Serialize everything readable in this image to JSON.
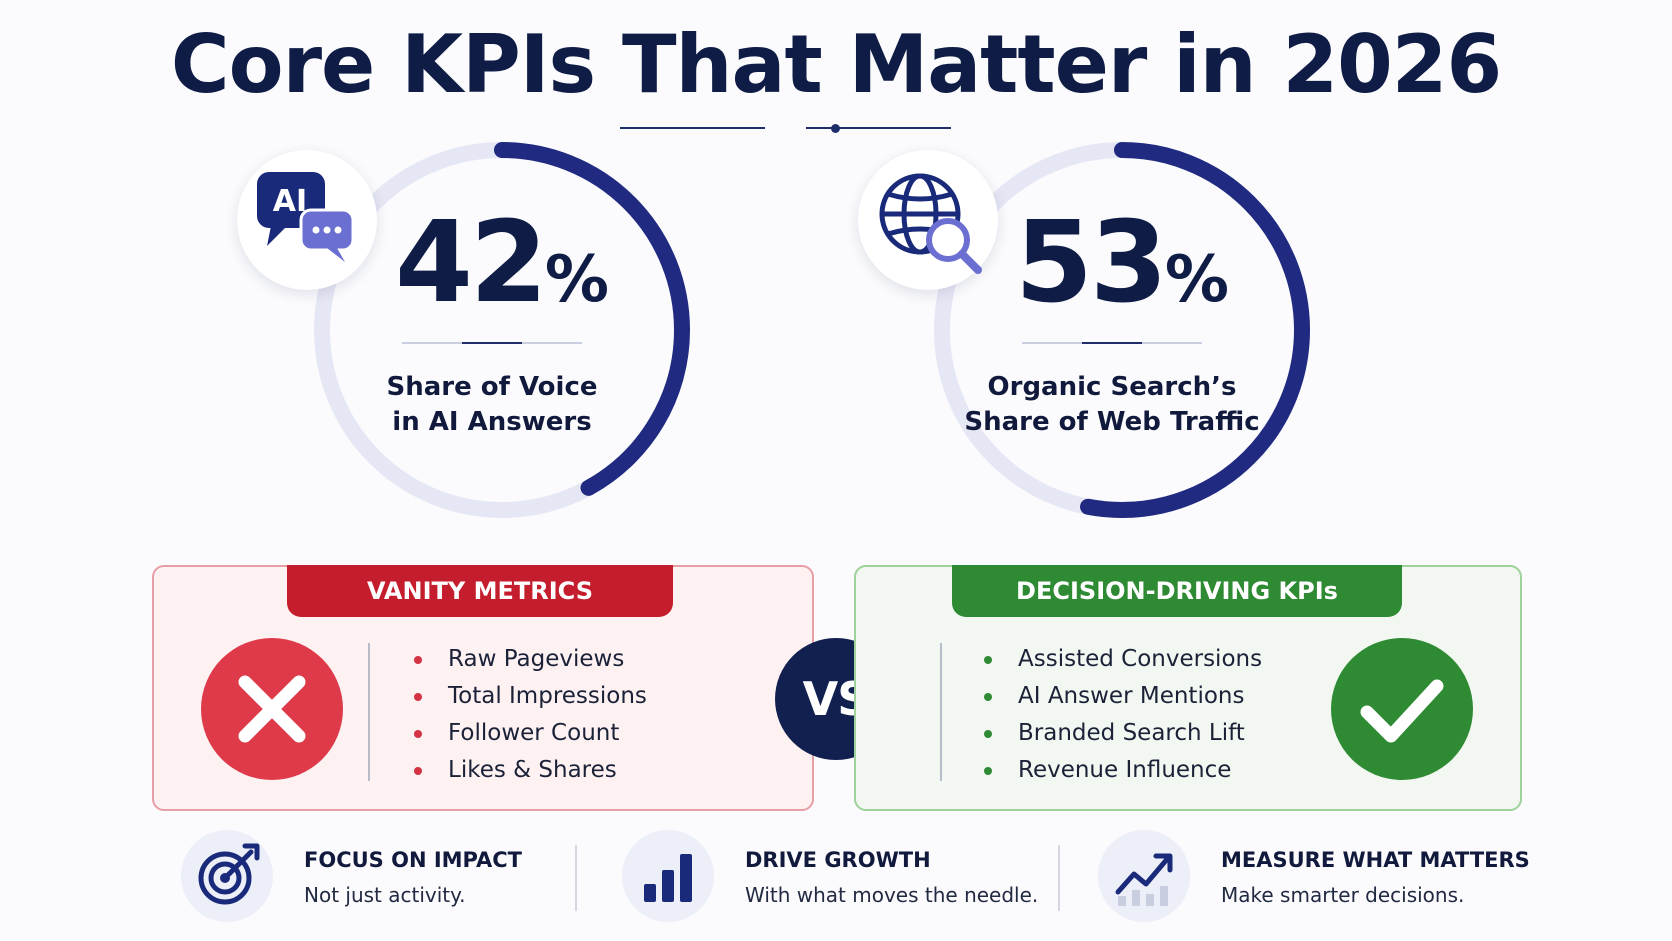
{
  "header": {
    "title": "Core KPIs That Matter in 2026"
  },
  "kpis": [
    {
      "value": "42",
      "unit": "%",
      "progress_fraction": 0.42,
      "label_line1": "Share of Voice",
      "label_line2": "in AI Answers",
      "icon": "ai-chat-icon",
      "icon_text": "AI"
    },
    {
      "value": "53",
      "unit": "%",
      "progress_fraction": 0.53,
      "label_line1": "Organic Search’s",
      "label_line2": "Share of Web Traffic",
      "icon": "globe-search-icon"
    }
  ],
  "comparison": {
    "vanity": {
      "title": "VANITY METRICS",
      "icon": "x-mark-icon",
      "items": [
        "Raw Pageviews",
        "Total Impressions",
        "Follower Count",
        "Likes & Shares"
      ]
    },
    "vs_label": "VS",
    "decision": {
      "title": "DECISION-DRIVING KPIs",
      "icon": "check-mark-icon",
      "items": [
        "Assisted Conversions",
        "AI Answer Mentions",
        "Branded Search Lift",
        "Revenue Influence"
      ]
    }
  },
  "footer": [
    {
      "icon": "target-icon",
      "title": "FOCUS ON IMPACT",
      "subtitle": "Not just activity."
    },
    {
      "icon": "bar-chart-icon",
      "title": "DRIVE GROWTH",
      "subtitle": "With what moves the needle."
    },
    {
      "icon": "trend-up-icon",
      "title": "MEASURE WHAT MATTERS",
      "subtitle": "Make smarter decisions."
    }
  ],
  "colors": {
    "navy": "#0f1c45",
    "ring_track": "#e6e7f5",
    "ring_progress": "#1f2a80",
    "vanity_red": "#c41e2e",
    "decision_green": "#2f8a34"
  }
}
